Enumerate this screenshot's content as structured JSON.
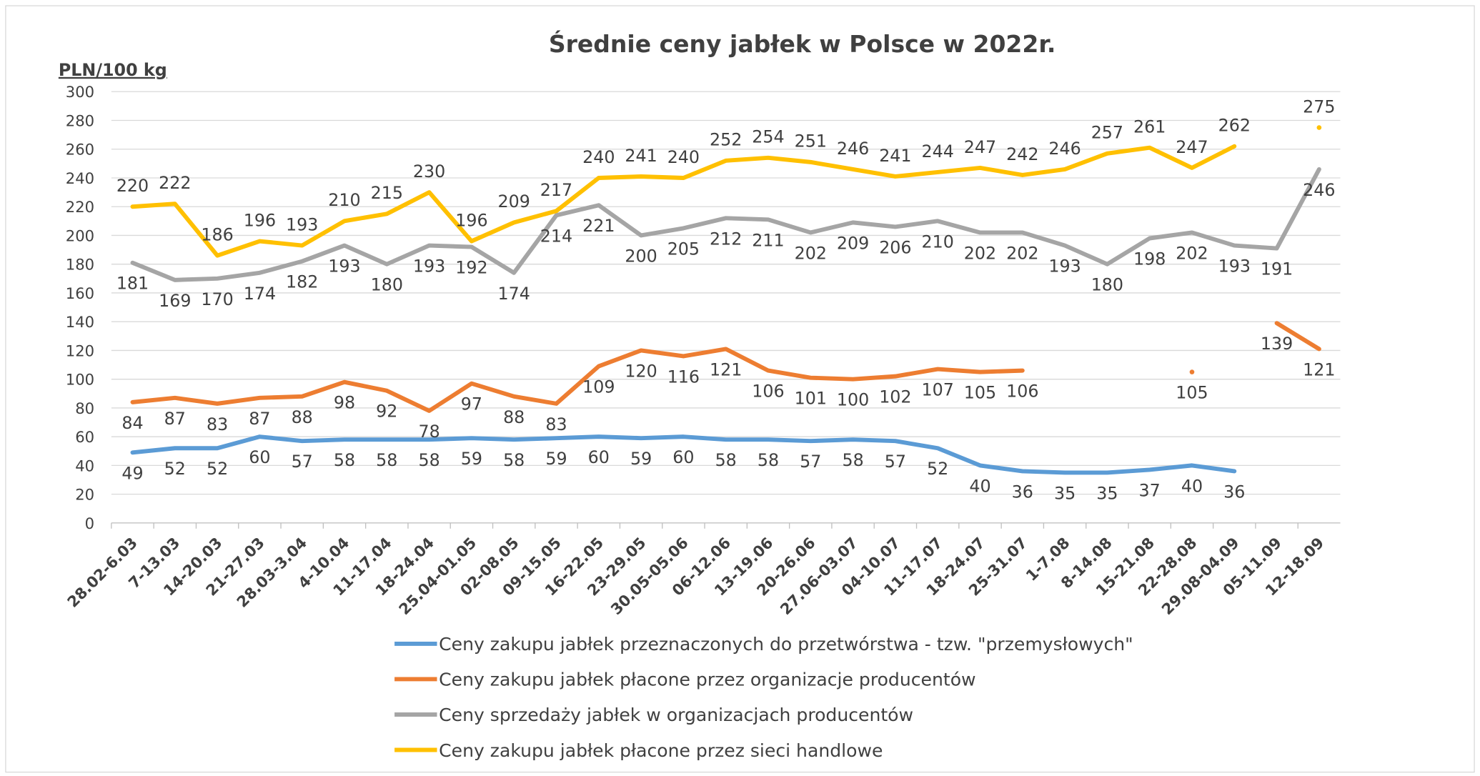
{
  "chart_data": {
    "type": "line",
    "title": "Średnie ceny jabłek w Polsce w 2022r.",
    "y_label": "PLN/100 kg",
    "categories": [
      "28.02-6.03",
      "7-13.03",
      "14-20.03",
      "21-27.03",
      "28.03-3.04",
      "4-10.04",
      "11-17.04",
      "18-24.04",
      "25.04-01.05",
      "02-08.05",
      "09-15.05",
      "16-22.05",
      "23-29.05",
      "30.05-05.06",
      "06-12.06",
      "13-19.06",
      "20-26.06",
      "27.06-03.07",
      "04-10.07",
      "11-17.07",
      "18-24.07",
      "25-31.07",
      "1-7.08",
      "8-14.08",
      "15-21.08",
      "22-28.08",
      "29.08-04.09",
      "05-11.09",
      "12-18.09"
    ],
    "series": [
      {
        "name": "Ceny zakupu jabłek przeznaczonych do przetwórstwa - tzw. \"przemysłowych\"",
        "color": "#5b9bd5",
        "values": [
          49,
          52,
          52,
          60,
          57,
          58,
          58,
          58,
          59,
          58,
          59,
          60,
          59,
          60,
          58,
          58,
          57,
          58,
          57,
          52,
          40,
          36,
          35,
          35,
          37,
          40,
          36,
          null,
          null
        ]
      },
      {
        "name": "Ceny zakupu jabłek płacone przez organizacje  producentów",
        "color": "#ed7d31",
        "values": [
          84,
          87,
          83,
          87,
          88,
          98,
          92,
          78,
          97,
          88,
          83,
          109,
          120,
          116,
          121,
          106,
          101,
          100,
          102,
          107,
          105,
          106,
          null,
          null,
          null,
          105,
          null,
          139,
          121
        ]
      },
      {
        "name": "Ceny sprzedaży jabłek w organizacjach  producentów",
        "color": "#a5a5a5",
        "values": [
          181,
          169,
          170,
          174,
          182,
          193,
          180,
          193,
          192,
          174,
          214,
          221,
          200,
          205,
          212,
          211,
          202,
          209,
          206,
          210,
          202,
          202,
          193,
          180,
          198,
          202,
          193,
          191,
          246
        ]
      },
      {
        "name": "Ceny zakupu jabłek płacone przez sieci handlowe",
        "color": "#ffc000",
        "values": [
          220,
          222,
          186,
          196,
          193,
          210,
          215,
          230,
          196,
          209,
          217,
          240,
          241,
          240,
          252,
          254,
          251,
          246,
          241,
          244,
          247,
          242,
          246,
          257,
          261,
          247,
          262,
          null,
          275
        ]
      }
    ],
    "ylim": [
      0,
      300
    ],
    "yticks": [
      0,
      20,
      40,
      60,
      80,
      100,
      120,
      140,
      160,
      180,
      200,
      220,
      240,
      260,
      280,
      300
    ],
    "grid": true
  }
}
